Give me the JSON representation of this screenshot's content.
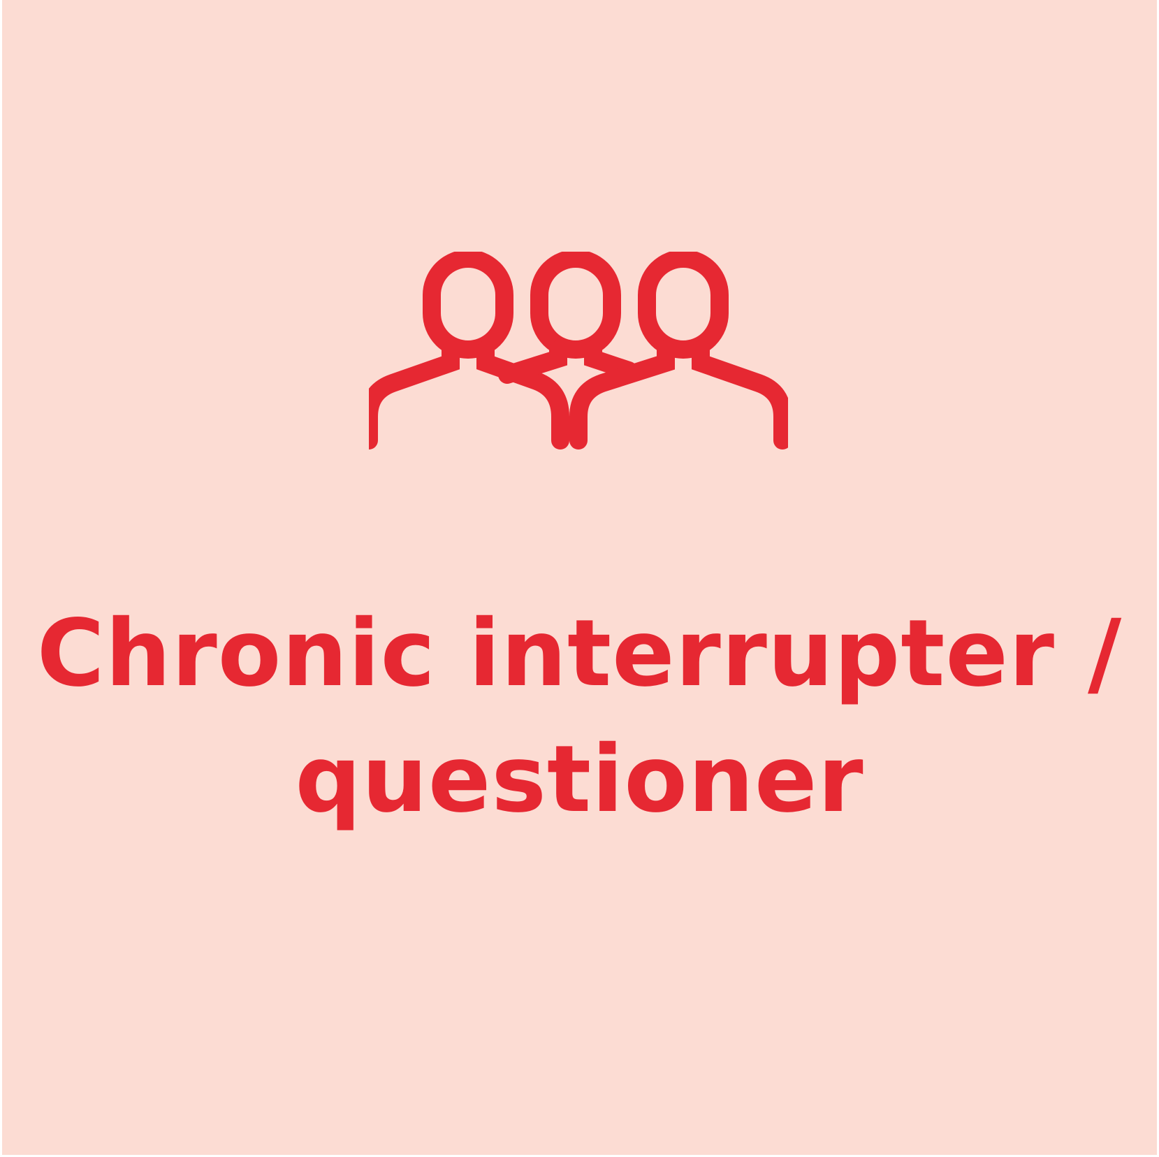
{
  "card": {
    "background": "#fcdcd3",
    "accent_color": "#e62832",
    "icon": "three-people-icon",
    "caption_lines": [
      "Chronic interrupter /",
      "questioner"
    ]
  }
}
